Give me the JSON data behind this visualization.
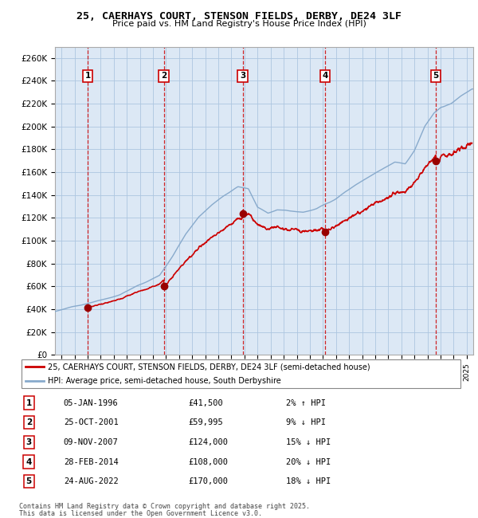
{
  "title": "25, CAERHAYS COURT, STENSON FIELDS, DERBY, DE24 3LF",
  "subtitle": "Price paid vs. HM Land Registry's House Price Index (HPI)",
  "legend_line1": "25, CAERHAYS COURT, STENSON FIELDS, DERBY, DE24 3LF (semi-detached house)",
  "legend_line2": "HPI: Average price, semi-detached house, South Derbyshire",
  "transactions": [
    {
      "num": 1,
      "date": "05-JAN-1996",
      "price": 41500,
      "pct": "2% ↑ HPI",
      "year_x": 1996.01
    },
    {
      "num": 2,
      "date": "25-OCT-2001",
      "price": 59995,
      "pct": "9% ↓ HPI",
      "year_x": 2001.82
    },
    {
      "num": 3,
      "date": "09-NOV-2007",
      "price": 124000,
      "pct": "15% ↓ HPI",
      "year_x": 2007.86
    },
    {
      "num": 4,
      "date": "28-FEB-2014",
      "price": 108000,
      "pct": "20% ↓ HPI",
      "year_x": 2014.16
    },
    {
      "num": 5,
      "date": "24-AUG-2022",
      "price": 170000,
      "pct": "18% ↓ HPI",
      "year_x": 2022.65
    }
  ],
  "footnote1": "Contains HM Land Registry data © Crown copyright and database right 2025.",
  "footnote2": "This data is licensed under the Open Government Licence v3.0.",
  "xmin": 1993.5,
  "xmax": 2025.5,
  "ymin": 0,
  "ymax": 270000,
  "yticks": [
    0,
    20000,
    40000,
    60000,
    80000,
    100000,
    120000,
    140000,
    160000,
    180000,
    200000,
    220000,
    240000,
    260000
  ],
  "price_color": "#cc0000",
  "hpi_color": "#88aacc",
  "bg_color": "#dce8f5",
  "grid_color": "#adc6e0",
  "dashed_line_color": "#cc0000",
  "dot_color": "#990000"
}
